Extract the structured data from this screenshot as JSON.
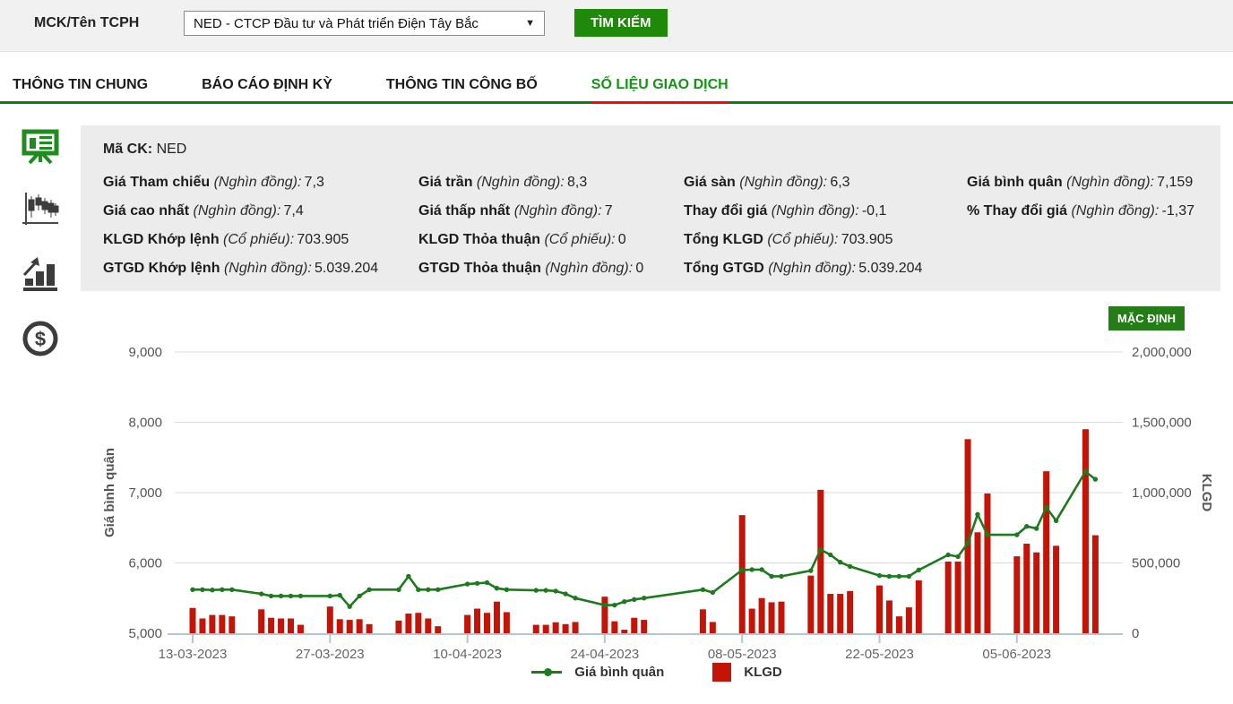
{
  "toolbar": {
    "label": "MCK/Tên TCPH",
    "dropdown_value": "NED - CTCP Đầu tư và Phát triển Điện Tây Bắc",
    "search_button": "TÌM KIẾM"
  },
  "tabs": [
    {
      "label": "THÔNG TIN CHUNG",
      "active": false
    },
    {
      "label": "BÁO CÁO ĐỊNH KỲ",
      "active": false
    },
    {
      "label": "THÔNG TIN CÔNG BỐ",
      "active": false
    },
    {
      "label": "SỐ LIỆU GIAO DỊCH",
      "active": true
    }
  ],
  "sidebar": {
    "icons": [
      "presentation-chart-icon",
      "candlestick-chart-icon",
      "bar-chart-arrow-icon",
      "money-coin-icon"
    ],
    "active_icon": "presentation-chart-icon"
  },
  "info_panel": {
    "ma_ck_label": "Mã CK:",
    "ma_ck_value": "NED",
    "rows": [
      [
        {
          "label": "Giá Tham chiếu",
          "unit": "(Nghìn đồng):",
          "value": "7,3"
        },
        {
          "label": "Giá trần",
          "unit": "(Nghìn đồng):",
          "value": "8,3"
        },
        {
          "label": "Giá sàn",
          "unit": "(Nghìn đồng):",
          "value": "6,3"
        },
        {
          "label": "Giá bình quân",
          "unit": "(Nghìn đồng):",
          "value": "7,159"
        }
      ],
      [
        {
          "label": "Giá cao nhất",
          "unit": "(Nghìn đồng):",
          "value": "7,4"
        },
        {
          "label": "Giá thấp nhất",
          "unit": "(Nghìn đồng):",
          "value": "7"
        },
        {
          "label": "Thay đổi giá",
          "unit": "(Nghìn đồng):",
          "value": "-0,1"
        },
        {
          "label": "% Thay đổi giá",
          "unit": "(Nghìn đồng):",
          "value": "-1,37"
        }
      ],
      [
        {
          "label": "KLGD Khớp lệnh",
          "unit": "(Cổ phiếu):",
          "value": "703.905"
        },
        {
          "label": "KLGD Thỏa thuận",
          "unit": "(Cổ phiếu):",
          "value": "0"
        },
        {
          "label": "Tổng KLGD",
          "unit": "(Cổ phiếu):",
          "value": "703.905"
        },
        null
      ],
      [
        {
          "label": "GTGD Khớp lệnh",
          "unit": "(Nghìn đồng):",
          "value": "5.039.204"
        },
        {
          "label": "GTGD Thỏa thuận",
          "unit": "(Nghìn đồng):",
          "value": "0"
        },
        {
          "label": "Tổng GTGD",
          "unit": "(Nghìn đồng):",
          "value": "5.039.204"
        },
        null
      ]
    ]
  },
  "chart": {
    "default_button": "MẶC ĐỊNH"
  },
  "chart_data": {
    "type": "combo-line-bar",
    "ylabel_left": "Giá bình quân",
    "ylabel_right": "KLGD",
    "ylim_left": [
      5000,
      9000
    ],
    "ylim_right": [
      0,
      2000000
    ],
    "yticks_left": [
      5000,
      6000,
      7000,
      8000,
      9000
    ],
    "yticks_right": [
      0,
      500000,
      1000000,
      1500000,
      2000000
    ],
    "x_ticks": [
      "13-03-2023",
      "27-03-2023",
      "10-04-2023",
      "24-04-2023",
      "08-05-2023",
      "22-05-2023",
      "05-06-2023"
    ],
    "legend": [
      "Giá bình quân",
      "KLGD"
    ],
    "line_color": "#1d7a1d",
    "bar_color": "#c41408",
    "grid": true,
    "series_names": [
      "Giá bình quân (price)",
      "KLGD (volume)"
    ],
    "points": [
      [
        "13-03-2023",
        5620,
        180000
      ],
      [
        "14-03-2023",
        5620,
        105000
      ],
      [
        "15-03-2023",
        5615,
        130000
      ],
      [
        "16-03-2023",
        5620,
        130000
      ],
      [
        "17-03-2023",
        5620,
        120000
      ],
      [
        "20-03-2023",
        5560,
        170000
      ],
      [
        "21-03-2023",
        5530,
        110000
      ],
      [
        "22-03-2023",
        5530,
        105000
      ],
      [
        "23-03-2023",
        5530,
        105000
      ],
      [
        "24-03-2023",
        5530,
        60000
      ],
      [
        "27-03-2023",
        5530,
        190000
      ],
      [
        "28-03-2023",
        5540,
        100000
      ],
      [
        "29-03-2023",
        5380,
        95000
      ],
      [
        "30-03-2023",
        5530,
        100000
      ],
      [
        "31-03-2023",
        5620,
        65000
      ],
      [
        "03-04-2023",
        5620,
        90000
      ],
      [
        "04-04-2023",
        5810,
        140000
      ],
      [
        "05-04-2023",
        5620,
        145000
      ],
      [
        "06-04-2023",
        5620,
        105000
      ],
      [
        "07-04-2023",
        5620,
        50000
      ],
      [
        "10-04-2023",
        5700,
        130000
      ],
      [
        "11-04-2023",
        5710,
        175000
      ],
      [
        "12-04-2023",
        5720,
        145000
      ],
      [
        "13-04-2023",
        5640,
        225000
      ],
      [
        "14-04-2023",
        5620,
        150000
      ],
      [
        "17-04-2023",
        5610,
        60000
      ],
      [
        "18-04-2023",
        5610,
        60000
      ],
      [
        "19-04-2023",
        5600,
        78000
      ],
      [
        "20-04-2023",
        5560,
        65000
      ],
      [
        "21-04-2023",
        5500,
        80000
      ],
      [
        "24-04-2023",
        5400,
        260000
      ],
      [
        "25-04-2023",
        5400,
        85000
      ],
      [
        "26-04-2023",
        5450,
        25000
      ],
      [
        "27-04-2023",
        5480,
        110000
      ],
      [
        "28-04-2023",
        5500,
        95000
      ],
      [
        "04-05-2023",
        5620,
        170000
      ],
      [
        "05-05-2023",
        5580,
        80000
      ],
      [
        "08-05-2023",
        5900,
        840000
      ],
      [
        "09-05-2023",
        5905,
        175000
      ],
      [
        "10-05-2023",
        5905,
        250000
      ],
      [
        "11-05-2023",
        5810,
        220000
      ],
      [
        "12-05-2023",
        5810,
        225000
      ],
      [
        "15-05-2023",
        5890,
        410000
      ],
      [
        "16-05-2023",
        6190,
        1020000
      ],
      [
        "17-05-2023",
        6115,
        280000
      ],
      [
        "18-05-2023",
        6010,
        280000
      ],
      [
        "19-05-2023",
        5950,
        300000
      ],
      [
        "22-05-2023",
        5820,
        340000
      ],
      [
        "23-05-2023",
        5810,
        233000
      ],
      [
        "24-05-2023",
        5810,
        120000
      ],
      [
        "25-05-2023",
        5810,
        184000
      ],
      [
        "26-05-2023",
        5900,
        376000
      ],
      [
        "29-05-2023",
        6115,
        510000
      ],
      [
        "30-05-2023",
        6090,
        510000
      ],
      [
        "31-05-2023",
        6280,
        1380000
      ],
      [
        "01-06-2023",
        6690,
        718000
      ],
      [
        "02-06-2023",
        6400,
        994000
      ],
      [
        "05-06-2023",
        6400,
        547000
      ],
      [
        "06-06-2023",
        6520,
        637000
      ],
      [
        "07-06-2023",
        6490,
        575000
      ],
      [
        "08-06-2023",
        6790,
        1152000
      ],
      [
        "09-06-2023",
        6600,
        622000
      ],
      [
        "12-06-2023",
        7300,
        1451000
      ],
      [
        "13-06-2023",
        7190,
        697000
      ]
    ]
  }
}
